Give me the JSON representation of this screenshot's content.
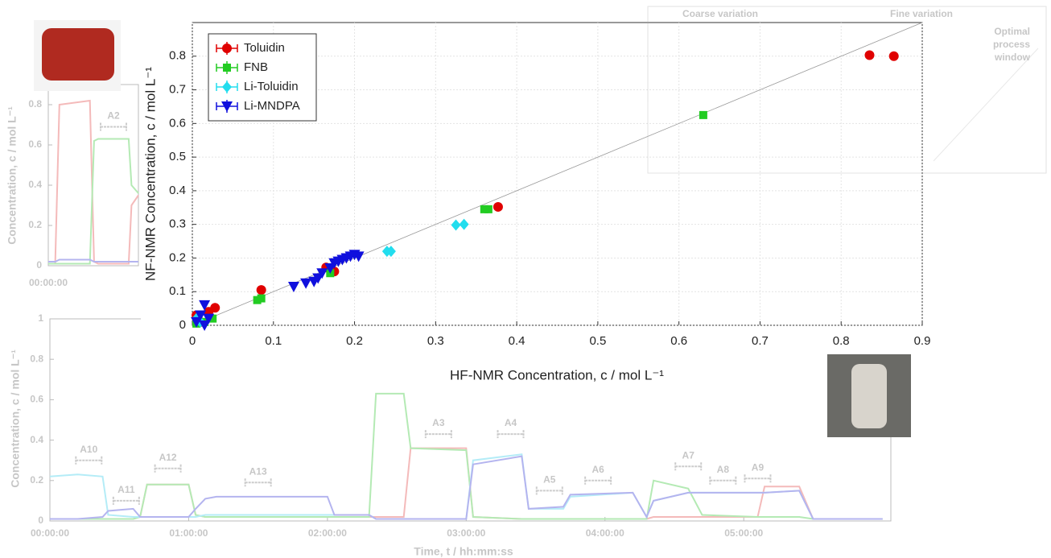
{
  "chart_data": [
    {
      "type": "scatter",
      "xlabel": "HF-NMR Concentration, c / mol L⁻¹",
      "ylabel": "NF-NMR Concentration, c / mol L⁻¹",
      "xlim": [
        0,
        0.9
      ],
      "ylim": [
        0,
        0.9
      ],
      "xticks": [
        0,
        0.1,
        0.2,
        0.3,
        0.4,
        0.5,
        0.6,
        0.7,
        0.8,
        0.9
      ],
      "yticks": [
        0,
        0.1,
        0.2,
        0.3,
        0.4,
        0.5,
        0.6,
        0.7,
        0.8
      ],
      "grid": true,
      "diagonal": true,
      "legend": "upper left",
      "series": [
        {
          "name": "Toluidin",
          "color": "#e00000",
          "marker": "circle",
          "x": [
            0.835,
            0.865,
            0.377,
            0.165,
            0.175,
            0.085,
            0.028,
            0.02,
            0.005,
            0.01
          ],
          "values": [
            0.803,
            0.8,
            0.352,
            0.172,
            0.16,
            0.105,
            0.052,
            0.04,
            0.03,
            0.01
          ]
        },
        {
          "name": "FNB",
          "color": "#22cc22",
          "marker": "square",
          "x": [
            0.63,
            0.36,
            0.365,
            0.17,
            0.08,
            0.085,
            0.025,
            0.015,
            0.005
          ],
          "values": [
            0.625,
            0.345,
            0.345,
            0.155,
            0.075,
            0.08,
            0.02,
            0.01,
            0.005
          ]
        },
        {
          "name": "Li-Toluidin",
          "color": "#22ddee",
          "marker": "diamond",
          "x": [
            0.24,
            0.245,
            0.325,
            0.335,
            0.01,
            0.005
          ],
          "values": [
            0.22,
            0.22,
            0.298,
            0.3,
            0.01,
            0.02
          ]
        },
        {
          "name": "Li-MNDPA",
          "color": "#1010dd",
          "marker": "triangle-down",
          "x": [
            0.125,
            0.14,
            0.15,
            0.155,
            0.16,
            0.17,
            0.175,
            0.18,
            0.185,
            0.19,
            0.195,
            0.2,
            0.205,
            0.015,
            0.01,
            0.005,
            0.015,
            0.02
          ],
          "values": [
            0.115,
            0.125,
            0.13,
            0.14,
            0.155,
            0.17,
            0.185,
            0.19,
            0.195,
            0.2,
            0.205,
            0.21,
            0.205,
            0.06,
            0.03,
            0.01,
            0.0,
            0.02
          ]
        }
      ]
    },
    {
      "type": "line",
      "xlabel": "Time, t / hh:mm:ss",
      "ylabel": "Concentration, c / mol L⁻¹",
      "xlim": [
        0,
        6.06
      ],
      "ylim": [
        0,
        1
      ],
      "xticks": [
        {
          "value": 0,
          "label": "00:00:00"
        },
        {
          "value": 1,
          "label": "01:00:00"
        },
        {
          "value": 2,
          "label": "02:00:00"
        },
        {
          "value": 3,
          "label": "03:00:00"
        },
        {
          "value": 4,
          "label": "04:00:00"
        },
        {
          "value": 5,
          "label": "05:00:00"
        }
      ],
      "yticks": [
        0,
        0.2,
        0.4,
        0.6,
        0.8,
        1
      ],
      "x": [
        0,
        0.2,
        0.38,
        0.42,
        0.6,
        0.65,
        0.7,
        1.0,
        1.05,
        1.12,
        1.2,
        2.0,
        2.05,
        2.3,
        2.35,
        2.55,
        2.6,
        3.0,
        3.05,
        3.4,
        3.45,
        3.7,
        3.75,
        4.2,
        4.3,
        4.35,
        4.6,
        4.7,
        5.1,
        5.15,
        5.4,
        5.5,
        6.0
      ],
      "series": [
        {
          "color": "#e03030",
          "values": [
            0.01,
            0.01,
            0.01,
            0.01,
            0.01,
            0.02,
            0.18,
            0.18,
            0.03,
            0.02,
            0.02,
            0.02,
            0.02,
            0.02,
            0.02,
            0.02,
            0.36,
            0.36,
            0.02,
            0.01,
            0.01,
            0.01,
            0.01,
            0.01,
            0.01,
            0.02,
            0.02,
            0.02,
            0.02,
            0.17,
            0.17,
            0.01,
            0.01
          ]
        },
        {
          "color": "#20c020",
          "values": [
            0.01,
            0.01,
            0.01,
            0.01,
            0.01,
            0.02,
            0.18,
            0.18,
            0.03,
            0.02,
            0.02,
            0.02,
            0.02,
            0.02,
            0.63,
            0.63,
            0.36,
            0.35,
            0.02,
            0.01,
            0.01,
            0.01,
            0.01,
            0.01,
            0.01,
            0.2,
            0.16,
            0.03,
            0.02,
            0.02,
            0.02,
            0.01,
            0.01
          ]
        },
        {
          "color": "#20c8e8",
          "values": [
            0.22,
            0.23,
            0.22,
            0.03,
            0.02,
            0.02,
            0.02,
            0.02,
            0.02,
            0.03,
            0.03,
            0.03,
            0.03,
            0.03,
            0.01,
            0.01,
            0.01,
            0.01,
            0.3,
            0.33,
            0.06,
            0.06,
            0.12,
            0.14,
            0.02,
            0.1,
            0.14,
            0.14,
            0.14,
            0.14,
            0.15,
            0.01,
            0.01
          ]
        },
        {
          "color": "#2020d0",
          "values": [
            0.01,
            0.01,
            0.02,
            0.05,
            0.06,
            0.02,
            0.02,
            0.02,
            0.06,
            0.11,
            0.12,
            0.12,
            0.03,
            0.03,
            0.01,
            0.01,
            0.01,
            0.01,
            0.28,
            0.32,
            0.06,
            0.07,
            0.13,
            0.14,
            0.02,
            0.1,
            0.14,
            0.14,
            0.14,
            0.14,
            0.15,
            0.01,
            0.01
          ]
        }
      ],
      "annotations": [
        {
          "text": "A10",
          "x": 0.28,
          "y": 0.3
        },
        {
          "text": "A11",
          "x": 0.55,
          "y": 0.1
        },
        {
          "text": "A12",
          "x": 0.85,
          "y": 0.26
        },
        {
          "text": "A13",
          "x": 1.5,
          "y": 0.19
        },
        {
          "text": "A3",
          "x": 2.8,
          "y": 0.43
        },
        {
          "text": "A4",
          "x": 3.32,
          "y": 0.43
        },
        {
          "text": "A5",
          "x": 3.6,
          "y": 0.15
        },
        {
          "text": "A6",
          "x": 3.95,
          "y": 0.2
        },
        {
          "text": "A7",
          "x": 4.6,
          "y": 0.27
        },
        {
          "text": "A8",
          "x": 4.85,
          "y": 0.2
        },
        {
          "text": "A9",
          "x": 5.1,
          "y": 0.21
        }
      ]
    },
    {
      "type": "line",
      "ylabel": "Concentration, c / mol L⁻¹",
      "xlim": [
        0,
        0.65
      ],
      "ylim": [
        0,
        0.9
      ],
      "xticks": [
        {
          "value": 0,
          "label": "00:00:00"
        }
      ],
      "yticks": [
        0,
        0.2,
        0.4,
        0.6,
        0.8
      ],
      "x": [
        0,
        0.05,
        0.08,
        0.3,
        0.33,
        0.36,
        0.58,
        0.6,
        0.65
      ],
      "series": [
        {
          "color": "#e03030",
          "values": [
            0.01,
            0.01,
            0.8,
            0.82,
            0.02,
            0.01,
            0.01,
            0.3,
            0.35
          ]
        },
        {
          "color": "#20c020",
          "values": [
            0.01,
            0.01,
            0.01,
            0.01,
            0.62,
            0.63,
            0.63,
            0.4,
            0.36
          ]
        },
        {
          "color": "#2020d0",
          "values": [
            0.02,
            0.02,
            0.03,
            0.03,
            0.02,
            0.02,
            0.02,
            0.02,
            0.02
          ]
        }
      ],
      "annotations": [
        {
          "text": "A2",
          "x": 0.47,
          "y": 0.69
        }
      ]
    }
  ],
  "inset_labels": {
    "left": "Coarse variation",
    "right": "Fine variation",
    "window": [
      "Optimal",
      "process",
      "window"
    ]
  }
}
